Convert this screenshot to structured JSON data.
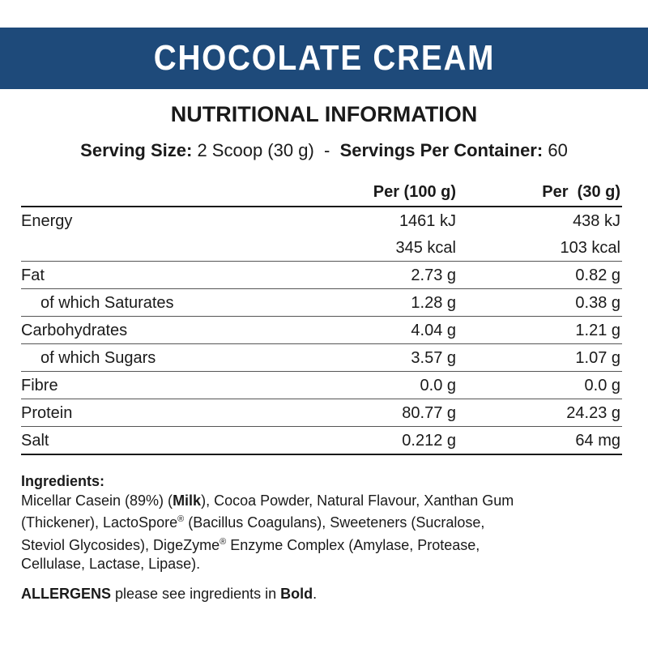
{
  "banner": {
    "title": "CHOCOLATE CREAM",
    "color": "#1e4a7a"
  },
  "heading": "NUTRITIONAL INFORMATION",
  "serving": {
    "size_label": "Serving Size:",
    "size_value": "2 Scoop (30 g)",
    "separator": "-",
    "per_container_label": "Servings Per Container:",
    "per_container_value": "60"
  },
  "table": {
    "headers": [
      "Per (100 g)",
      "Per  (30 g)"
    ],
    "rows": [
      {
        "label": "Energy",
        "a": "1461 kJ",
        "b": "438 kJ"
      },
      {
        "label": "",
        "a": "345 kcal",
        "b": "103 kcal"
      },
      {
        "label": "Fat",
        "a": "2.73 g",
        "b": "0.82 g"
      },
      {
        "label": "of which Saturates",
        "a": "1.28 g",
        "b": "0.38 g"
      },
      {
        "label": "Carbohydrates",
        "a": "4.04 g",
        "b": "1.21 g"
      },
      {
        "label": "of which Sugars",
        "a": "3.57 g",
        "b": "1.07 g"
      },
      {
        "label": "Fibre",
        "a": "0.0 g",
        "b": "0.0 g"
      },
      {
        "label": "Protein",
        "a": "80.77 g",
        "b": "24.23 g"
      },
      {
        "label": "Salt",
        "a": "0.212 g",
        "b": "64 mg"
      }
    ]
  },
  "ingredients": {
    "title": "Ingredients:",
    "line1_pre": "Micellar Casein (89%) (",
    "line1_bold": "Milk",
    "line1_post": "), Cocoa Powder, Natural Flavour, Xanthan Gum",
    "line2_pre": "(Thickener), LactoSpore",
    "reg": "®",
    "line2_post": " (Bacillus Coagulans), Sweeteners (Sucralose,",
    "line3_pre": "Steviol Glycosides), DigeZyme",
    "line3_post": " Enzyme Complex (Amylase, Protease,",
    "line4": "Cellulase, Lactase, Lipase)."
  },
  "allergens": {
    "bold_word": "ALLERGENS",
    "text": " please see ingredients in ",
    "bold_end": "Bold",
    "period": "."
  }
}
